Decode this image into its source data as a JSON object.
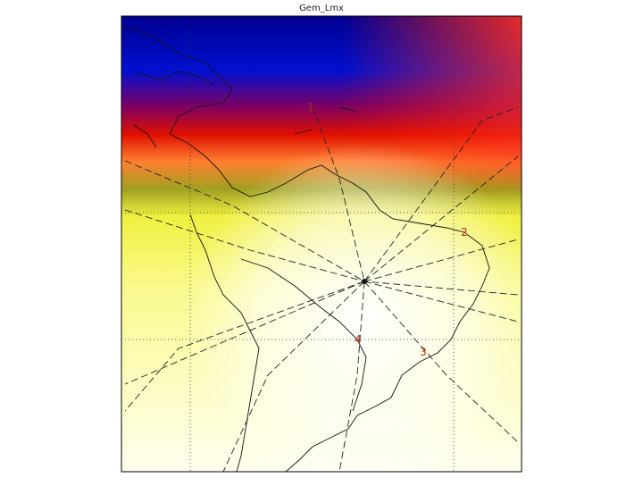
{
  "title": "Gem_Lmx",
  "markers": [
    {
      "label": "1"
    },
    {
      "label": "2"
    },
    {
      "label": "3"
    },
    {
      "label": "4"
    }
  ]
}
